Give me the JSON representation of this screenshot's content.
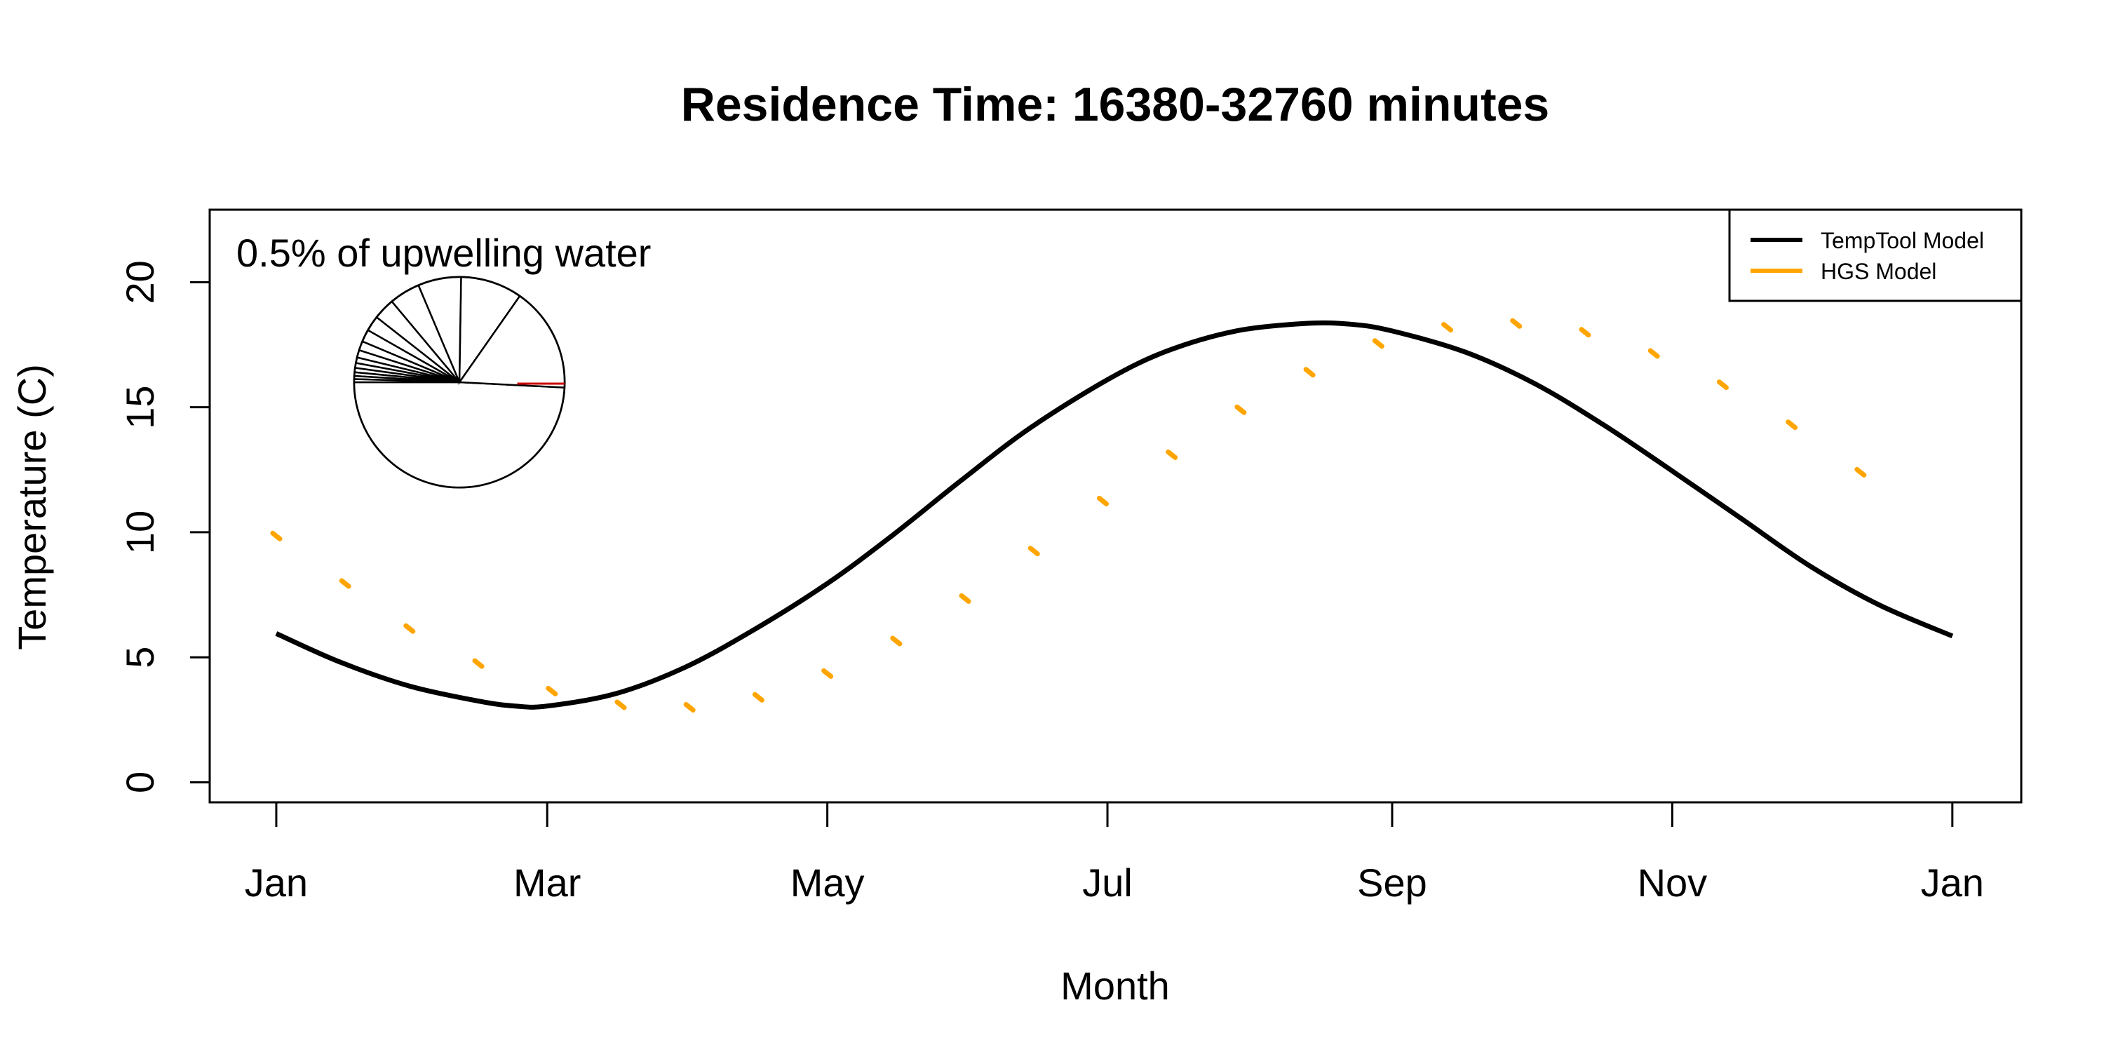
{
  "chart_data": {
    "type": "line",
    "title": "Residence Time: 16380-32760 minutes",
    "xlabel": "Month",
    "ylabel": "Temperature (C)",
    "annotation": "0.5% of upwelling water",
    "x_ticks": [
      {
        "label": "Jan",
        "day": 1
      },
      {
        "label": "Mar",
        "day": 60
      },
      {
        "label": "May",
        "day": 121
      },
      {
        "label": "Jul",
        "day": 182
      },
      {
        "label": "Sep",
        "day": 244
      },
      {
        "label": "Nov",
        "day": 305
      },
      {
        "label": "Jan",
        "day": 366
      }
    ],
    "xlim": [
      -13.5,
      381
    ],
    "ylim": [
      -0.8,
      22.9
    ],
    "y_ticks": [
      0,
      5,
      10,
      15,
      20
    ],
    "legend": {
      "position": "top-right",
      "entries": [
        {
          "label": "TempTool Model",
          "color": "#000000",
          "style": "solid"
        },
        {
          "label": "HGS Model",
          "color": "#FFA500",
          "style": "dotted"
        }
      ]
    },
    "series": [
      {
        "name": "TempTool Model",
        "color": "#000000",
        "style": "solid",
        "points": [
          [
            1,
            5.95
          ],
          [
            15,
            4.8
          ],
          [
            30,
            3.85
          ],
          [
            45,
            3.25
          ],
          [
            53,
            3.05
          ],
          [
            60,
            3.05
          ],
          [
            75,
            3.55
          ],
          [
            90,
            4.6
          ],
          [
            105,
            6.1
          ],
          [
            121,
            7.95
          ],
          [
            135,
            9.85
          ],
          [
            150,
            12.05
          ],
          [
            165,
            14.15
          ],
          [
            182,
            16.1
          ],
          [
            195,
            17.25
          ],
          [
            210,
            18.05
          ],
          [
            225,
            18.35
          ],
          [
            235,
            18.32
          ],
          [
            244,
            18.05
          ],
          [
            260,
            17.2
          ],
          [
            275,
            15.95
          ],
          [
            290,
            14.3
          ],
          [
            305,
            12.45
          ],
          [
            320,
            10.55
          ],
          [
            335,
            8.65
          ],
          [
            350,
            7.1
          ],
          [
            366,
            5.85
          ]
        ]
      },
      {
        "name": "HGS Model",
        "color": "#FFA500",
        "style": "dotted",
        "points": [
          [
            1,
            9.85
          ],
          [
            16,
            7.95
          ],
          [
            30,
            6.15
          ],
          [
            45,
            4.75
          ],
          [
            61,
            3.65
          ],
          [
            76,
            3.1
          ],
          [
            91,
            3.0
          ],
          [
            106,
            3.4
          ],
          [
            121,
            4.35
          ],
          [
            136,
            5.65
          ],
          [
            151,
            7.35
          ],
          [
            166,
            9.25
          ],
          [
            181,
            11.25
          ],
          [
            196,
            13.1
          ],
          [
            211,
            14.9
          ],
          [
            226,
            16.4
          ],
          [
            241,
            17.55
          ],
          [
            256,
            18.2
          ],
          [
            271,
            18.35
          ],
          [
            286,
            18.0
          ],
          [
            301,
            17.15
          ],
          [
            316,
            15.9
          ],
          [
            331,
            14.3
          ],
          [
            346,
            12.4
          ]
        ]
      }
    ],
    "inset_pie": {
      "slices": [
        52,
        17,
        10,
        7,
        5,
        3.5,
        2.5,
        2,
        1.5,
        1.2,
        0.9,
        0.8,
        0.7,
        0.6,
        0.5,
        0.5
      ],
      "fill": "#ffffff",
      "stroke": "#000000",
      "highlight_color": "#cc0000"
    }
  }
}
